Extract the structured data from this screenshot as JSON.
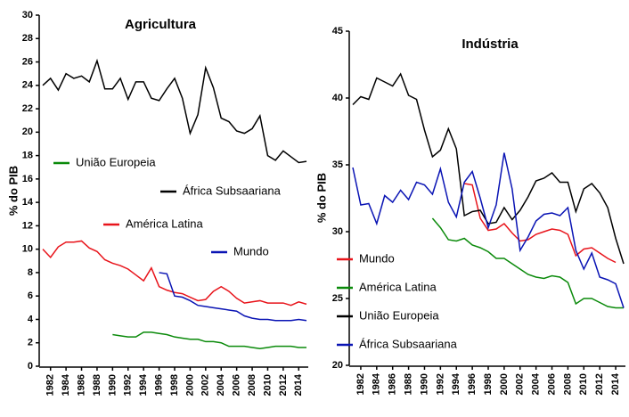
{
  "chart_data": [
    {
      "type": "line",
      "title": "Agricultura",
      "y_label": "% do PIB",
      "x": [
        1981,
        1982,
        1983,
        1984,
        1985,
        1986,
        1987,
        1988,
        1989,
        1990,
        1991,
        1992,
        1993,
        1994,
        1995,
        1996,
        1997,
        1998,
        1999,
        2000,
        2001,
        2002,
        2003,
        2004,
        2005,
        2006,
        2007,
        2008,
        2009,
        2010,
        2011,
        2012,
        2013,
        2014,
        2015
      ],
      "xlim": [
        1981,
        2015
      ],
      "xticks": [
        1982,
        1984,
        1986,
        1988,
        1990,
        1992,
        1994,
        1996,
        1998,
        2000,
        2002,
        2004,
        2006,
        2008,
        2010,
        2012,
        2014
      ],
      "ylim": [
        0,
        30
      ],
      "yticks": [
        0,
        2,
        4,
        6,
        8,
        10,
        12,
        14,
        16,
        18,
        20,
        22,
        24,
        26,
        28,
        30
      ],
      "series": [
        {
          "name": "União Europeia",
          "color": "#0a8a0a",
          "values": [
            null,
            null,
            null,
            null,
            null,
            null,
            null,
            null,
            null,
            2.7,
            2.6,
            2.5,
            2.5,
            2.9,
            2.9,
            2.8,
            2.7,
            2.5,
            2.4,
            2.3,
            2.3,
            2.1,
            2.1,
            2.0,
            1.7,
            1.7,
            1.7,
            1.6,
            1.5,
            1.6,
            1.7,
            1.7,
            1.7,
            1.6,
            1.6
          ]
        },
        {
          "name": "África Subsaariana",
          "color": "#000000",
          "values": [
            24.0,
            24.6,
            23.6,
            25.0,
            24.6,
            24.8,
            24.3,
            26.1,
            23.7,
            23.7,
            24.6,
            22.8,
            24.3,
            24.3,
            22.9,
            22.7,
            23.7,
            24.6,
            22.9,
            19.9,
            21.5,
            25.5,
            23.8,
            21.2,
            20.9,
            20.1,
            19.9,
            20.3,
            21.4,
            18.0,
            17.6,
            18.4,
            17.9,
            17.4,
            17.5
          ]
        },
        {
          "name": "América Latina",
          "color": "#e8141b",
          "values": [
            10.0,
            9.3,
            10.2,
            10.6,
            10.6,
            10.7,
            10.1,
            9.8,
            9.1,
            8.8,
            8.6,
            8.3,
            7.8,
            7.3,
            8.4,
            6.8,
            6.5,
            6.3,
            6.2,
            5.9,
            5.6,
            5.7,
            6.4,
            6.8,
            6.4,
            5.8,
            5.4,
            5.5,
            5.6,
            5.4,
            5.4,
            5.4,
            5.2,
            5.5,
            5.3
          ]
        },
        {
          "name": "Mundo",
          "color": "#0a14b4",
          "values": [
            null,
            null,
            null,
            null,
            null,
            null,
            null,
            null,
            null,
            null,
            null,
            null,
            null,
            null,
            null,
            8.0,
            7.9,
            6.0,
            5.9,
            5.6,
            5.2,
            5.1,
            5.0,
            4.9,
            4.8,
            4.7,
            4.3,
            4.1,
            4.0,
            4.0,
            3.9,
            3.9,
            3.9,
            4.0,
            3.9
          ]
        }
      ]
    },
    {
      "type": "line",
      "title": "Indústria",
      "y_label": "% do PIB",
      "x": [
        1981,
        1982,
        1983,
        1984,
        1985,
        1986,
        1987,
        1988,
        1989,
        1990,
        1991,
        1992,
        1993,
        1994,
        1995,
        1996,
        1997,
        1998,
        1999,
        2000,
        2001,
        2002,
        2003,
        2004,
        2005,
        2006,
        2007,
        2008,
        2009,
        2010,
        2011,
        2012,
        2013,
        2014,
        2015
      ],
      "xlim": [
        1981,
        2015
      ],
      "xticks": [
        1982,
        1984,
        1986,
        1988,
        1990,
        1992,
        1994,
        1996,
        1998,
        2000,
        2002,
        2004,
        2006,
        2008,
        2010,
        2012,
        2014
      ],
      "ylim": [
        20,
        45
      ],
      "yticks": [
        20,
        25,
        30,
        35,
        40,
        45
      ],
      "series": [
        {
          "name": "Mundo",
          "color": "#e8141b",
          "values": [
            null,
            null,
            null,
            null,
            null,
            null,
            null,
            null,
            null,
            null,
            null,
            null,
            null,
            null,
            33.6,
            33.5,
            31.0,
            30.1,
            30.2,
            30.6,
            29.9,
            29.3,
            29.4,
            29.8,
            30.0,
            30.2,
            30.1,
            29.8,
            28.2,
            28.7,
            28.8,
            28.4,
            28.0,
            27.7,
            null
          ]
        },
        {
          "name": "América Latina",
          "color": "#0a8a0a",
          "values": [
            null,
            null,
            null,
            null,
            null,
            null,
            null,
            null,
            null,
            null,
            31.0,
            30.3,
            29.4,
            29.3,
            29.5,
            29.0,
            28.8,
            28.5,
            28.0,
            28.0,
            27.6,
            27.2,
            26.8,
            26.6,
            26.5,
            26.7,
            26.6,
            26.2,
            24.6,
            25.0,
            25.0,
            24.7,
            24.4,
            24.3,
            24.3
          ]
        },
        {
          "name": "União Europeia",
          "color": "#000000",
          "values": [
            39.5,
            40.1,
            39.9,
            41.5,
            41.2,
            40.9,
            41.8,
            40.2,
            39.9,
            37.6,
            35.6,
            36.1,
            37.7,
            36.2,
            31.2,
            31.5,
            31.6,
            30.6,
            30.7,
            31.8,
            30.9,
            31.6,
            32.6,
            33.8,
            34.0,
            34.4,
            33.7,
            33.7,
            31.5,
            33.2,
            33.6,
            32.9,
            31.8,
            29.5,
            27.6
          ]
        },
        {
          "name": "África Subsaariana",
          "color": "#0a14b4",
          "values": [
            34.8,
            32.0,
            32.1,
            30.6,
            32.7,
            32.2,
            33.1,
            32.4,
            33.7,
            33.5,
            32.8,
            34.7,
            32.2,
            31.1,
            33.7,
            34.5,
            32.5,
            30.3,
            32.0,
            35.9,
            33.2,
            28.6,
            29.6,
            30.8,
            31.3,
            31.4,
            31.2,
            31.8,
            28.6,
            27.2,
            28.4,
            26.6,
            26.4,
            26.1,
            24.3
          ]
        }
      ]
    }
  ]
}
